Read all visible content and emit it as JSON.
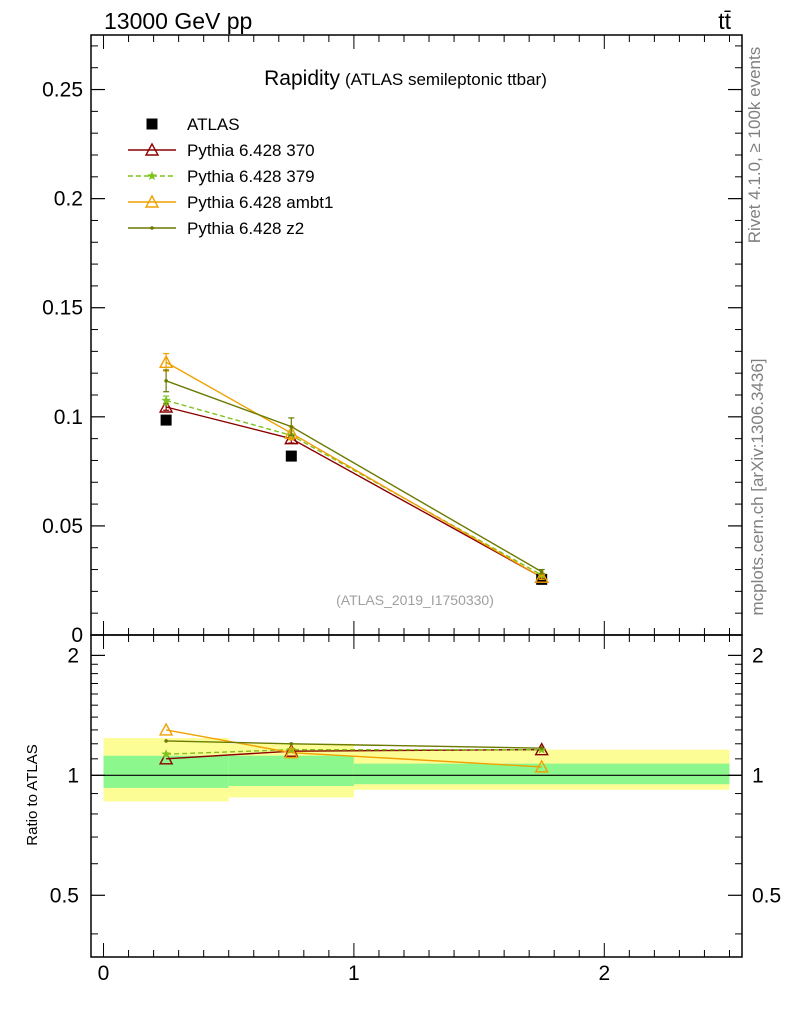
{
  "header": {
    "left": "13000 GeV pp",
    "right": "tt̄"
  },
  "side_labels": {
    "rivet": "Rivet 4.1.0, ≥ 100k events",
    "mcplots": "mcplots.cern.ch [arXiv:1306.3436]"
  },
  "chart_data": [
    {
      "panel": "main",
      "type": "line",
      "title": "Rapidity",
      "subtitle": "(ATLAS semileptonic ttbar)",
      "watermark": "(ATLAS_2019_I1750330)",
      "xlabel": "",
      "ylabel": "",
      "xlim": [
        -0.05,
        2.55
      ],
      "ylim": [
        0,
        0.275
      ],
      "ytick_values": [
        0,
        0.05,
        0.1,
        0.15,
        0.2,
        0.25
      ],
      "yticks": [
        "0",
        "0.05",
        "0.1",
        "0.15",
        "0.2",
        "0.25"
      ],
      "legend": "top-left",
      "x": [
        0.25,
        0.75,
        1.75
      ],
      "series": [
        {
          "name": "ATLAS",
          "values": [
            0.0985,
            0.082,
            0.0255
          ],
          "color": "#000000",
          "marker": "square",
          "style": "marker-only"
        },
        {
          "name": "Pythia 6.428 370",
          "values": [
            0.1045,
            0.09,
            0.0265
          ],
          "errors": [
            0.0015,
            0.002,
            0.0008
          ],
          "color": "#8b0000",
          "marker": "triangle-open",
          "style": "solid"
        },
        {
          "name": "Pythia 6.428 379",
          "values": [
            0.1075,
            0.0915,
            0.0275
          ],
          "errors": [
            0.002,
            0.002,
            0.0008
          ],
          "color": "#7fc31c",
          "marker": "star",
          "style": "dashed"
        },
        {
          "name": "Pythia 6.428 ambt1",
          "values": [
            0.125,
            0.0925,
            0.0265
          ],
          "errors": [
            0.004,
            0.003,
            0.001
          ],
          "color": "#f0a000",
          "marker": "triangle-open",
          "style": "solid"
        },
        {
          "name": "Pythia 6.428 z2",
          "values": [
            0.1165,
            0.0955,
            0.029
          ],
          "errors": [
            0.005,
            0.004,
            0.001
          ],
          "color": "#6b7a00",
          "marker": "dot",
          "style": "solid"
        }
      ]
    },
    {
      "panel": "ratio",
      "type": "line",
      "ylabel": "Ratio to ATLAS",
      "xlim": [
        -0.05,
        2.55
      ],
      "ylim": [
        0.35,
        2.25
      ],
      "ytick_values": [
        0.5,
        1,
        2
      ],
      "yticks": [
        "0.5",
        "1",
        "2"
      ],
      "xtick_values": [
        0,
        1,
        2
      ],
      "xticks": [
        "0",
        "1",
        "2"
      ],
      "bands": [
        {
          "x_from": 0,
          "x_to": 0.5,
          "inner": [
            0.93,
            1.12
          ],
          "outer": [
            0.86,
            1.24
          ]
        },
        {
          "x_from": 0.5,
          "x_to": 1,
          "inner": [
            0.94,
            1.12
          ],
          "outer": [
            0.88,
            1.2
          ]
        },
        {
          "x_from": 1,
          "x_to": 2.5,
          "inner": [
            0.95,
            1.07
          ],
          "outer": [
            0.92,
            1.16
          ]
        }
      ],
      "band_colors": {
        "inner": "#8cf78c",
        "outer": "#fdfd96"
      },
      "x": [
        0.25,
        0.75,
        1.75
      ],
      "series": [
        {
          "name": "Pythia 6.428 370",
          "values": [
            1.1,
            1.15,
            1.16
          ],
          "color": "#8b0000",
          "marker": "triangle-open",
          "style": "solid"
        },
        {
          "name": "Pythia 6.428 379",
          "values": [
            1.13,
            1.16,
            1.16
          ],
          "color": "#7fc31c",
          "marker": "star",
          "style": "dashed"
        },
        {
          "name": "Pythia 6.428 ambt1",
          "values": [
            1.3,
            1.14,
            1.05
          ],
          "color": "#f0a000",
          "marker": "triangle-open",
          "style": "solid"
        },
        {
          "name": "Pythia 6.428 z2",
          "values": [
            1.22,
            1.2,
            1.17
          ],
          "color": "#6b7a00",
          "marker": "dot",
          "style": "solid"
        }
      ]
    }
  ]
}
